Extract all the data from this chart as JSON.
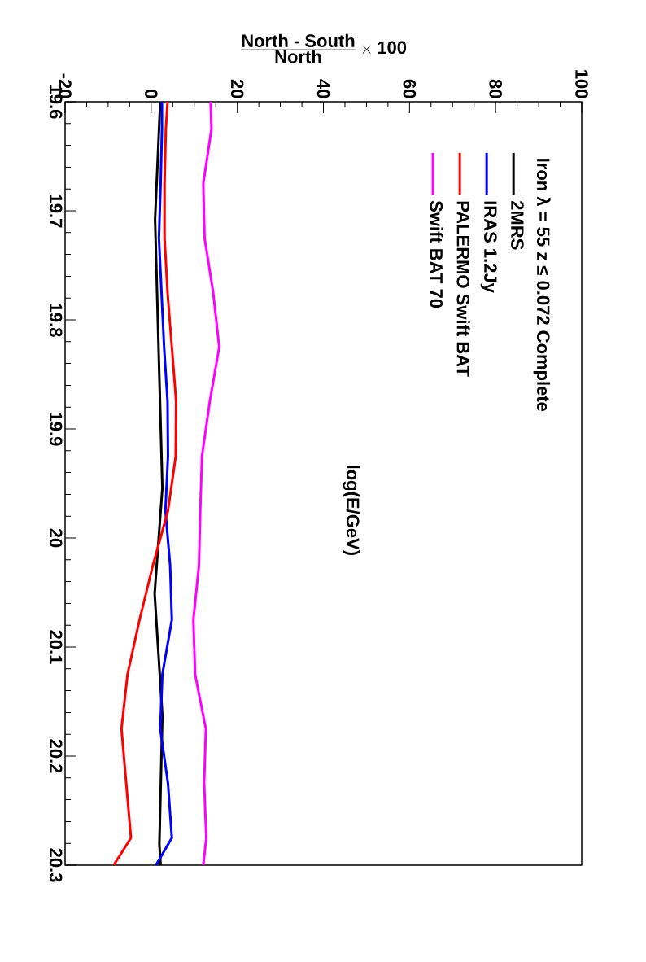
{
  "chart_data": {
    "type": "line",
    "xlabel": "\\frac{\\textbf{North - South}}{\\textbf{North}}\\times\\textbf{100}",
    "ylabel": "log(E/GeV)",
    "legend_title": "Iron λ = 55   z ≤ 0.072  Complete",
    "series": [
      {
        "name": "2MRS",
        "color": "#000000",
        "x": [
          2.1,
          0.9,
          2.6,
          0.8,
          2.6,
          1.9,
          2.2
        ],
        "values": [
          19.6,
          19.708,
          19.954,
          20.051,
          20.163,
          20.281,
          20.3
        ]
      },
      {
        "name": "IRAS 1.2Jy",
        "color": "#0000ff",
        "x": [
          2.5,
          2.5,
          2.2,
          1.8,
          2.4,
          3.0,
          3.8,
          3.9,
          3.3,
          4.4,
          4.8,
          2.6,
          2.1,
          3.9,
          4.8,
          1.1
        ],
        "values": [
          19.6,
          19.625,
          19.675,
          19.725,
          19.775,
          19.825,
          19.875,
          19.925,
          19.975,
          20.025,
          20.075,
          20.125,
          20.175,
          20.225,
          20.275,
          20.3
        ]
      },
      {
        "name": "PALERMO Swift BAT",
        "color": "#ff0000",
        "x": [
          3.8,
          3.4,
          3.1,
          3.1,
          3.8,
          4.8,
          5.8,
          5.7,
          3.9,
          0.4,
          -2.7,
          -5.5,
          -6.9,
          -5.8,
          -4.7,
          -8.7
        ],
        "values": [
          19.6,
          19.625,
          19.675,
          19.725,
          19.775,
          19.825,
          19.875,
          19.925,
          19.975,
          20.025,
          20.075,
          20.125,
          20.175,
          20.225,
          20.275,
          20.3
        ]
      },
      {
        "name": "Swift BAT 70",
        "color": "#ff00ff",
        "x": [
          13.8,
          14.0,
          12.1,
          12.4,
          14.4,
          15.8,
          13.6,
          11.8,
          11.4,
          11.1,
          9.8,
          10.2,
          12.7,
          12.3,
          12.8,
          12.1
        ],
        "values": [
          19.6,
          19.625,
          19.675,
          19.725,
          19.775,
          19.825,
          19.875,
          19.925,
          19.975,
          20.025,
          20.075,
          20.125,
          20.175,
          20.225,
          20.275,
          20.3
        ]
      }
    ],
    "xlim": [
      -20,
      100
    ],
    "xticks": [
      -20,
      0,
      20,
      40,
      60,
      80,
      100
    ],
    "ylim": [
      20.3,
      19.6
    ],
    "yticks": [
      19.6,
      19.7,
      19.8,
      19.9,
      20,
      20.1,
      20.2,
      20.3
    ],
    "legend": "top right",
    "grid": false,
    "marker": "none",
    "line_style": "solid"
  }
}
